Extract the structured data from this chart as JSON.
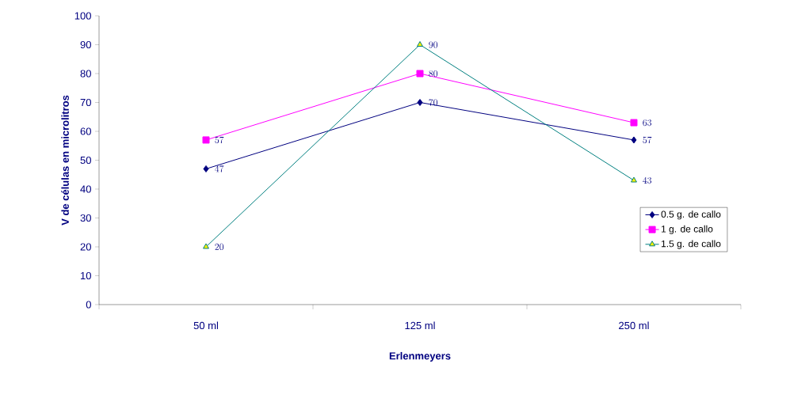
{
  "chart_data": {
    "type": "line",
    "xlabel": "Erlenmeyers",
    "ylabel": "V de células en microlitros",
    "categories": [
      "50 ml",
      "125 ml",
      "250 ml"
    ],
    "series": [
      {
        "name": "0.5 g. de callo",
        "color": "#000080",
        "marker": "diamond",
        "values": [
          47,
          70,
          57
        ]
      },
      {
        "name": "1 g. de callo",
        "color": "#ff00ff",
        "marker": "square",
        "values": [
          57,
          80,
          63
        ]
      },
      {
        "name": "1.5 g. de callo",
        "color": "#008080",
        "marker": "triangle",
        "values": [
          20,
          90,
          43
        ]
      }
    ],
    "ylim": [
      0,
      100
    ],
    "yticks": [
      0,
      10,
      20,
      30,
      40,
      50,
      60,
      70,
      80,
      90,
      100
    ],
    "data_labels": true,
    "legend": "right",
    "grid": false,
    "line_style": "solid"
  }
}
